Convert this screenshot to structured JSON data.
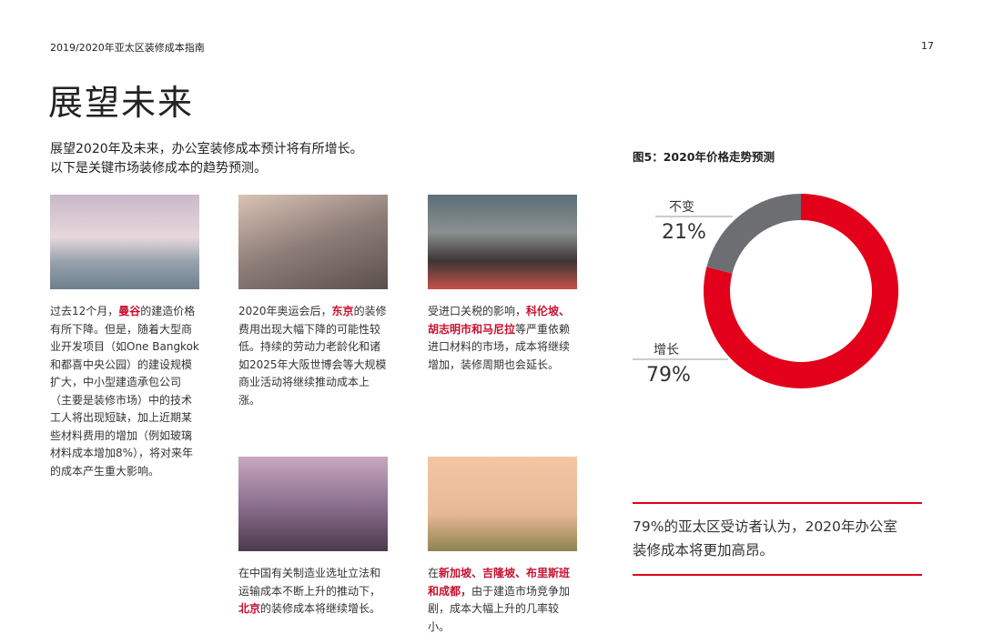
{
  "header": {
    "title": "2019/2020年亚太区装修成本指南",
    "page": "17"
  },
  "heading": "展望未来",
  "intro": [
    "展望2020年及未来，办公室装修成本预计将有所增长。",
    "以下是关键市场装修成本的趋势预测。"
  ],
  "cards": [
    {
      "segments": [
        {
          "text": "过去12个月，"
        },
        {
          "text": "曼谷",
          "em": true
        },
        {
          "text": "的建造价格有所下降。但是，随着大型商业开发项目（如One Bangkok和都喜中央公园）的建设规模扩大，中小型建造承包公司（主要是装修市场）中的技术工人将出现短缺，加上近期某些材料费用的增加（例如玻璃材料成本增加8%），将对来年的成本产生重大影响。"
        }
      ]
    },
    {
      "segments": [
        {
          "text": "2020年奥运会后，"
        },
        {
          "text": "东京",
          "em": true
        },
        {
          "text": "的装修费用出现大幅下降的可能性较低。持续的劳动力老龄化和诸如2025年大阪世博会等大规模商业活动将继续推动成本上涨。"
        }
      ]
    },
    {
      "segments": [
        {
          "text": "受进口关税的影响，"
        },
        {
          "text": "科伦坡、胡志明市和马尼拉",
          "em": true
        },
        {
          "text": "等严重依赖进口材料的市场，成本将继续增加，装修周期也会延长。"
        }
      ]
    },
    {
      "segments": [
        {
          "text": "在中国有关制造业选址立法和运输成本不断上升的推动下，"
        },
        {
          "text": "北京",
          "em": true
        },
        {
          "text": "的装修成本将继续增长。"
        }
      ]
    },
    {
      "segments": [
        {
          "text": "在"
        },
        {
          "text": "新加坡、吉隆坡、布里斯班和成都，",
          "em": true
        },
        {
          "text": "由于建造市场竞争加剧，成本大幅上升的几率较小。"
        }
      ]
    }
  ],
  "chart_data": {
    "type": "donut",
    "title": "图5：2020年价格走势预测",
    "categories": [
      "增长",
      "不变"
    ],
    "values": [
      79,
      21
    ],
    "value_labels": [
      "79%",
      "21%"
    ],
    "colors": [
      "#e2001a",
      "#6d6e71"
    ]
  },
  "quote": [
    "79%的亚太区受访者认为，2020年办公室",
    "装修成本将更加高昂。"
  ]
}
